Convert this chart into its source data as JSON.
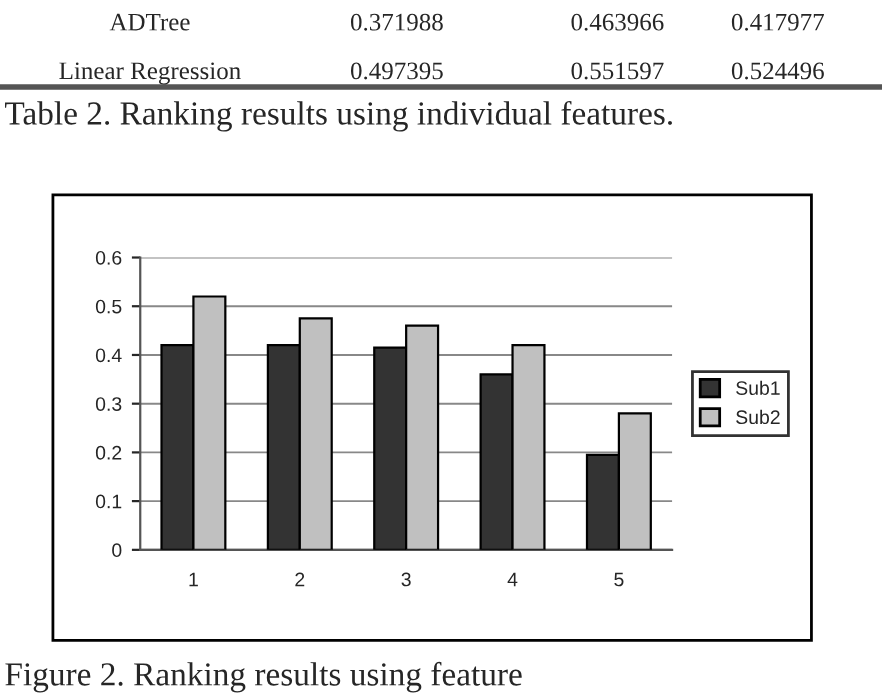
{
  "chart_data": {
    "type": "bar",
    "categories": [
      "1",
      "2",
      "3",
      "4",
      "5"
    ],
    "series": [
      {
        "name": "Sub1",
        "color": "#333333",
        "values": [
          0.42,
          0.42,
          0.415,
          0.36,
          0.195
        ]
      },
      {
        "name": "Sub2",
        "color": "#c0c0c0",
        "values": [
          0.52,
          0.475,
          0.46,
          0.42,
          0.28
        ]
      }
    ],
    "ylim": [
      0,
      0.6
    ],
    "yticks": [
      {
        "value": 0,
        "label": "0"
      },
      {
        "value": 0.1,
        "label": "0.1"
      },
      {
        "value": 0.2,
        "label": "0.2"
      },
      {
        "value": 0.3,
        "label": "0.3"
      },
      {
        "value": 0.4,
        "label": "0.4"
      },
      {
        "value": 0.5,
        "label": "0.5"
      },
      {
        "value": 0.6,
        "label": "0.6"
      }
    ],
    "grid": "y",
    "legend": "right",
    "annotations": [
      "ADTree",
      "0.371988",
      "0.463966",
      "0.417977",
      "Linear Regression",
      "0.497395",
      "0.551597",
      "0.524496",
      "Table 2. Ranking results using individual features.",
      "Figure 2. Ranking results using feature"
    ]
  }
}
